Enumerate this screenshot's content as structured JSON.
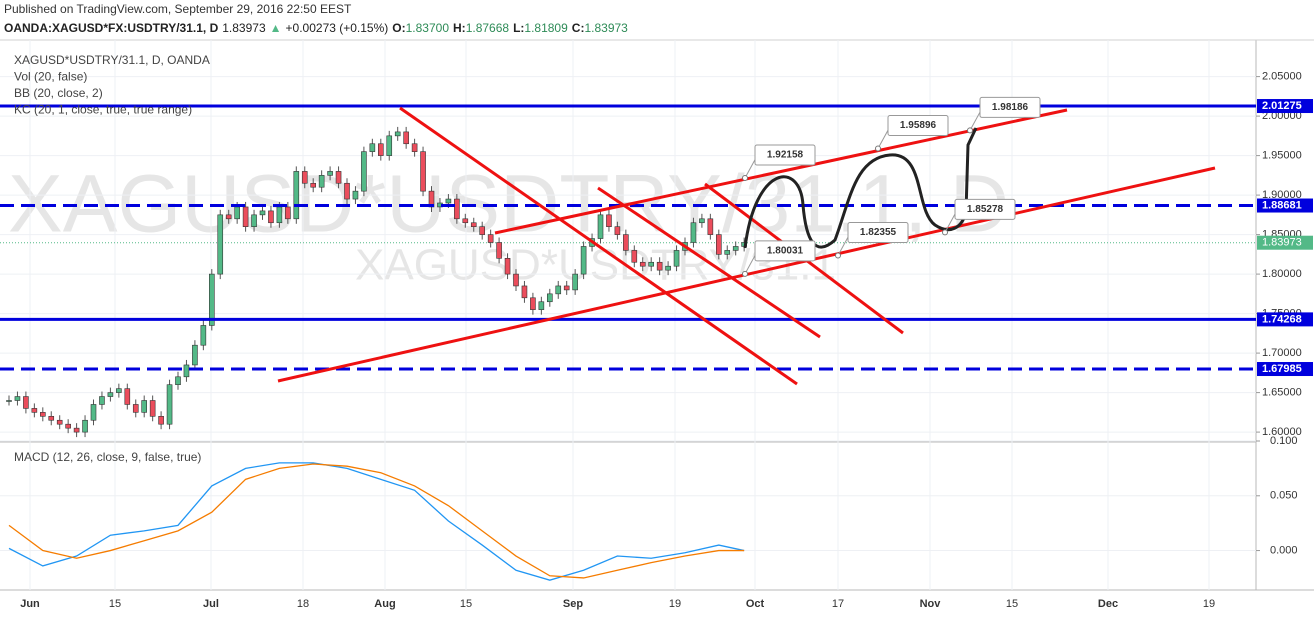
{
  "chart_data": {
    "type": "candlestick",
    "published": "Published on TradingView.com, September 29, 2016 22:50 EEST",
    "header": {
      "symbol": "OANDA:XAGUSD*FX:USDTRY/31.1, D",
      "last": "1.83973",
      "arrow": "▲",
      "change": "+0.00273 (+0.15%)",
      "ohlc": [
        {
          "label": "O:",
          "value": "1.83700"
        },
        {
          "label": "H:",
          "value": "1.87668"
        },
        {
          "label": "L:",
          "value": "1.81809"
        },
        {
          "label": "C:",
          "value": "1.83973"
        }
      ]
    },
    "legend": [
      "XAGUSD*USDTRY/31.1, D, OANDA",
      "Vol (20, false)",
      "BB (20, close, 2)",
      "KC (20, 1, close, true, true range)"
    ],
    "watermark": "XAGUSD*USDTRY/31.1, D",
    "watermark_small": "XAGUSD*USDTRY/31.1",
    "xlabels": [
      "Jun",
      "15",
      "Jul",
      "18",
      "Aug",
      "15",
      "Sep",
      "19",
      "Oct",
      "17",
      "Nov",
      "15",
      "Dec",
      "19"
    ],
    "ylim": [
      1.59,
      2.09
    ],
    "yticks": [
      {
        "value": 1.6,
        "label": "1.60000"
      },
      {
        "value": 1.65,
        "label": "1.65000"
      },
      {
        "value": 1.7,
        "label": "1.70000"
      },
      {
        "value": 1.75,
        "label": "1.75000"
      },
      {
        "value": 1.8,
        "label": "1.80000"
      },
      {
        "value": 1.85,
        "label": "1.85000"
      },
      {
        "value": 1.9,
        "label": "1.90000"
      },
      {
        "value": 1.95,
        "label": "1.95000"
      },
      {
        "value": 2.0,
        "label": "2.00000"
      },
      {
        "value": 2.05,
        "label": "2.05000"
      }
    ],
    "grid": true,
    "up_color": "#53b987",
    "down_color": "#eb4d5c",
    "closes": [
      1.64,
      1.645,
      1.63,
      1.625,
      1.62,
      1.615,
      1.61,
      1.605,
      1.6,
      1.615,
      1.635,
      1.645,
      1.65,
      1.655,
      1.635,
      1.625,
      1.64,
      1.62,
      1.61,
      1.66,
      1.67,
      1.685,
      1.71,
      1.735,
      1.8,
      1.875,
      1.87,
      1.885,
      1.86,
      1.875,
      1.88,
      1.865,
      1.885,
      1.87,
      1.93,
      1.915,
      1.91,
      1.925,
      1.93,
      1.915,
      1.895,
      1.905,
      1.955,
      1.965,
      1.95,
      1.975,
      1.98,
      1.965,
      1.955,
      1.905,
      1.885,
      1.89,
      1.895,
      1.87,
      1.865,
      1.86,
      1.85,
      1.84,
      1.82,
      1.8,
      1.785,
      1.77,
      1.755,
      1.765,
      1.775,
      1.785,
      1.78,
      1.8,
      1.835,
      1.845,
      1.875,
      1.86,
      1.85,
      1.83,
      1.815,
      1.81,
      1.815,
      1.805,
      1.81,
      1.83,
      1.84,
      1.865,
      1.87,
      1.85,
      1.825,
      1.83,
      1.835,
      1.84
    ],
    "last_price": {
      "value": 1.83973,
      "label": "1.83973"
    },
    "levels": [
      {
        "value": 2.01275,
        "label": "2.01275",
        "style": "solid"
      },
      {
        "value": 1.88681,
        "label": "1.88681",
        "style": "dashed"
      },
      {
        "value": 1.74268,
        "label": "1.74268",
        "style": "solid"
      },
      {
        "value": 1.67985,
        "label": "1.67985",
        "style": "dashed"
      }
    ],
    "level_color": "#0000dd",
    "annotations": [
      {
        "value": 1.92158,
        "label": "1.92158"
      },
      {
        "value": 1.80031,
        "label": "1.80031"
      },
      {
        "value": 1.82355,
        "label": "1.82355"
      },
      {
        "value": 1.95896,
        "label": "1.95896"
      },
      {
        "value": 1.85278,
        "label": "1.85278"
      },
      {
        "value": 1.98186,
        "label": "1.98186"
      }
    ],
    "macd": {
      "title": "MACD (12, 26, close, 9, false, true)",
      "ylim": [
        -0.036,
        0.1
      ],
      "yticks": [
        {
          "value": 0,
          "label": "0.000"
        },
        {
          "value": 0.05,
          "label": "0.050"
        },
        {
          "value": 0.1,
          "label": "0.100"
        }
      ],
      "series": [
        {
          "name": "MACD",
          "color": "#2196f3",
          "values": [
            0.002,
            -0.014,
            -0.005,
            0.014,
            0.018,
            0.023,
            0.059,
            0.075,
            0.08,
            0.08,
            0.075,
            0.065,
            0.055,
            0.027,
            0.005,
            -0.018,
            -0.027,
            -0.018,
            -0.005,
            -0.007,
            -0.002,
            0.005,
            0.0
          ]
        },
        {
          "name": "Signal",
          "color": "#f57c00",
          "values": [
            0.023,
            0.0,
            -0.007,
            0.0,
            0.009,
            0.018,
            0.035,
            0.065,
            0.075,
            0.079,
            0.077,
            0.071,
            0.059,
            0.041,
            0.018,
            -0.005,
            -0.023,
            -0.025,
            -0.018,
            -0.011,
            -0.005,
            0.0,
            0.0
          ]
        }
      ]
    }
  }
}
